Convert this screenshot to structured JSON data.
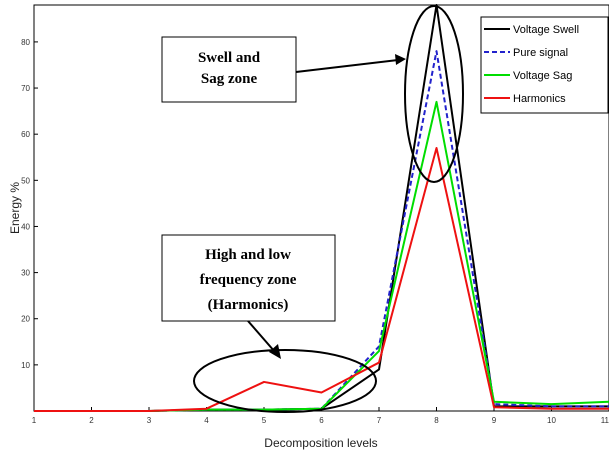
{
  "chart_data": {
    "type": "line",
    "title": "",
    "xlabel": "Decomposition levels",
    "ylabel": "Energy %",
    "xlim": [
      1,
      11
    ],
    "ylim": [
      0,
      88
    ],
    "x_ticks": [
      1,
      2,
      3,
      4,
      5,
      6,
      7,
      8,
      9,
      10,
      11
    ],
    "y_ticks": [
      10,
      20,
      30,
      40,
      50,
      60,
      70,
      80
    ],
    "legend_position": "top-right",
    "grid": false,
    "x": [
      1,
      2,
      3,
      4,
      5,
      6,
      7,
      8,
      9,
      10,
      11
    ],
    "series": [
      {
        "name": "Voltage Swell",
        "color": "#000000",
        "dash": "solid",
        "values": [
          0,
          0,
          0,
          0.3,
          0.3,
          0.5,
          9,
          88,
          1,
          1,
          1
        ]
      },
      {
        "name": "Pure signal",
        "color": "#2222cc",
        "dash": "dashed",
        "values": [
          0,
          0,
          0,
          0.3,
          0.3,
          0.5,
          14,
          78,
          1.5,
          1,
          1
        ]
      },
      {
        "name": "Voltage Sag",
        "color": "#00dd00",
        "dash": "solid",
        "values": [
          0,
          0,
          0,
          0.3,
          0.3,
          0.5,
          13,
          67,
          2,
          1.5,
          2
        ]
      },
      {
        "name": "Harmonics",
        "color": "#ee1111",
        "dash": "solid",
        "values": [
          0,
          0,
          0,
          0.5,
          6.3,
          4,
          10.5,
          57,
          0.8,
          0.5,
          0.5
        ]
      }
    ],
    "annotations": [
      {
        "id": "swell",
        "lines": [
          "Swell and",
          "Sag zone"
        ]
      },
      {
        "id": "harmonics",
        "lines": [
          "High and low",
          "frequency zone",
          "(Harmonics)"
        ]
      }
    ]
  }
}
